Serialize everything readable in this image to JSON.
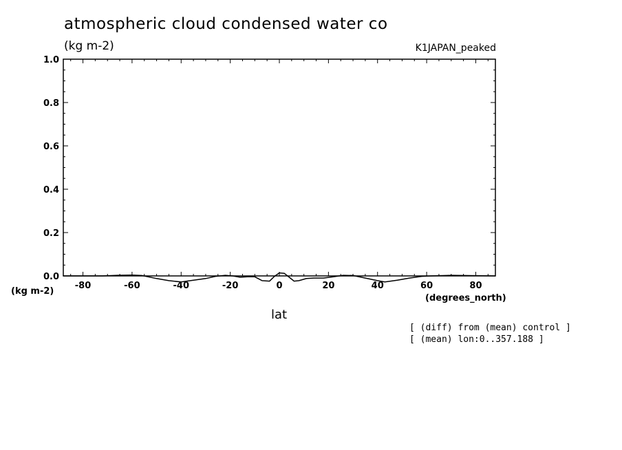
{
  "header": {
    "title": "atmospheric cloud condensed water co",
    "units": "(kg m-2)",
    "case": "K1JAPAN_peaked"
  },
  "notes": {
    "line1": "[ (diff) from (mean) control ]",
    "line2": "[ (mean) lon:0..357.188 ]"
  },
  "chart_data": {
    "type": "line",
    "xlabel": "lat",
    "x_units": "(degrees_north)",
    "ylabel": "(kg m-2)",
    "xlim": [
      -88,
      88
    ],
    "ylim": [
      0,
      1
    ],
    "xticks": [
      -80,
      -60,
      -40,
      -20,
      0,
      20,
      40,
      60,
      80
    ],
    "xtick_labels": [
      "-80",
      "-60",
      "-40",
      "-20",
      "0",
      "20",
      "40",
      "60",
      "80"
    ],
    "yticks": [
      0,
      0.2,
      0.4,
      0.6,
      0.8,
      1.0
    ],
    "ytick_labels": [
      "0.0",
      "0.2",
      "0.4",
      "0.6",
      "0.8",
      "1.0"
    ],
    "series": [
      {
        "x": [
          -88,
          -72,
          -66,
          -60,
          -56,
          -50,
          -45,
          -40,
          -35,
          -30,
          -26,
          -22,
          -19,
          -16,
          -13,
          -10,
          -7,
          -4,
          -2,
          0,
          2,
          4,
          6,
          8,
          11,
          14,
          18,
          22,
          26,
          30,
          35,
          40,
          43,
          48,
          53,
          58,
          62,
          70,
          88
        ],
        "y": [
          0,
          0,
          0.003,
          0.004,
          0.002,
          -0.012,
          -0.022,
          -0.028,
          -0.02,
          -0.012,
          -0.002,
          0.003,
          0.0,
          -0.006,
          -0.004,
          -0.004,
          -0.022,
          -0.024,
          -0.002,
          0.014,
          0.012,
          -0.006,
          -0.024,
          -0.022,
          -0.012,
          -0.01,
          -0.01,
          -0.004,
          0.003,
          0.002,
          -0.01,
          -0.022,
          -0.028,
          -0.02,
          -0.01,
          -0.002,
          0.0,
          0.003,
          0.0
        ]
      }
    ]
  }
}
